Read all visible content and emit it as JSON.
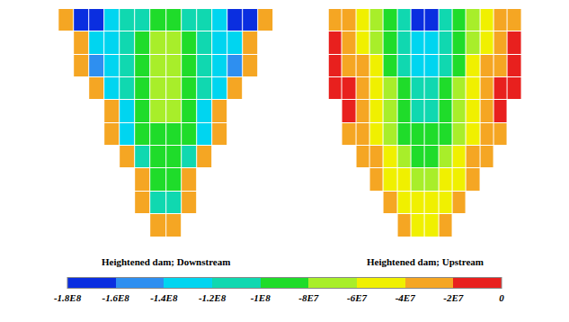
{
  "chart_data": {
    "type": "heatmap",
    "tick_labels": false,
    "colors": [
      "#0a2ee0",
      "#2e8ff0",
      "#00d5f0",
      "#10d8b0",
      "#1fdc2a",
      "#a8ee2a",
      "#f0f000",
      "#f5a623",
      "#e8201e"
    ],
    "colorbar": {
      "range": [
        -180000000.0,
        0
      ],
      "ticks": [
        {
          "value": -180000000.0,
          "label": "-1.8E8"
        },
        {
          "value": -160000000.0,
          "label": "-1.6E8"
        },
        {
          "value": -140000000.0,
          "label": "-1.4E8"
        },
        {
          "value": -120000000.0,
          "label": "-1.2E8"
        },
        {
          "value": -100000000.0,
          "label": "-1E8"
        },
        {
          "value": -80000000.0,
          "label": "-8E7"
        },
        {
          "value": -60000000.0,
          "label": "-6E7"
        },
        {
          "value": -40000000.0,
          "label": "-4E7"
        },
        {
          "value": -20000000.0,
          "label": "-2E7"
        },
        0
      ]
    },
    "panels": [
      {
        "title": "Heightened dam; Downstream",
        "z": [
          [
            -30000000.0,
            -170000000.0,
            -170000000.0,
            -130000000.0,
            -110000000.0,
            -110000000.0,
            -90000000.0,
            -90000000.0,
            -110000000.0,
            -110000000.0,
            -130000000.0,
            -170000000.0,
            -170000000.0,
            -30000000.0
          ],
          [
            null,
            -30000000.0,
            -130000000.0,
            -130000000.0,
            -110000000.0,
            -90000000.0,
            -70000000.0,
            -70000000.0,
            -90000000.0,
            -110000000.0,
            -130000000.0,
            -130000000.0,
            -30000000.0,
            null
          ],
          [
            null,
            -30000000.0,
            -150000000.0,
            -130000000.0,
            -110000000.0,
            -90000000.0,
            -70000000.0,
            -70000000.0,
            -90000000.0,
            -110000000.0,
            -130000000.0,
            -150000000.0,
            -30000000.0,
            null
          ],
          [
            null,
            null,
            -30000000.0,
            -130000000.0,
            -110000000.0,
            -90000000.0,
            -70000000.0,
            -70000000.0,
            -90000000.0,
            -110000000.0,
            -130000000.0,
            -30000000.0,
            null,
            null
          ],
          [
            null,
            null,
            null,
            -30000000.0,
            -130000000.0,
            -90000000.0,
            -70000000.0,
            -70000000.0,
            -90000000.0,
            -130000000.0,
            -30000000.0,
            null,
            null,
            null
          ],
          [
            null,
            null,
            null,
            -30000000.0,
            -130000000.0,
            -90000000.0,
            -90000000.0,
            -90000000.0,
            -90000000.0,
            -130000000.0,
            -30000000.0,
            null,
            null,
            null
          ],
          [
            null,
            null,
            null,
            null,
            -30000000.0,
            -110000000.0,
            -90000000.0,
            -90000000.0,
            -110000000.0,
            -30000000.0,
            null,
            null,
            null,
            null
          ],
          [
            null,
            null,
            null,
            null,
            null,
            -30000000.0,
            -90000000.0,
            -90000000.0,
            -30000000.0,
            null,
            null,
            null,
            null,
            null
          ],
          [
            null,
            null,
            null,
            null,
            null,
            -30000000.0,
            -110000000.0,
            -110000000.0,
            -30000000.0,
            null,
            null,
            null,
            null,
            null
          ],
          [
            null,
            null,
            null,
            null,
            null,
            null,
            -30000000.0,
            -30000000.0,
            null,
            null,
            null,
            null,
            null,
            null
          ]
        ]
      },
      {
        "title": "Heightened dam; Upstream",
        "z": [
          [
            -30000000.0,
            -30000000.0,
            -50000000.0,
            -70000000.0,
            -90000000.0,
            -110000000.0,
            -170000000.0,
            -170000000.0,
            -110000000.0,
            -90000000.0,
            -70000000.0,
            -50000000.0,
            -30000000.0,
            -30000000.0
          ],
          [
            -10000000.0,
            -30000000.0,
            -50000000.0,
            -70000000.0,
            -90000000.0,
            -110000000.0,
            -130000000.0,
            -130000000.0,
            -110000000.0,
            -90000000.0,
            -70000000.0,
            -50000000.0,
            -30000000.0,
            -10000000.0
          ],
          [
            -10000000.0,
            -30000000.0,
            -30000000.0,
            -50000000.0,
            -90000000.0,
            -110000000.0,
            -130000000.0,
            -130000000.0,
            -110000000.0,
            -90000000.0,
            -50000000.0,
            -30000000.0,
            -30000000.0,
            -10000000.0
          ],
          [
            -10000000.0,
            -10000000.0,
            -30000000.0,
            -50000000.0,
            -70000000.0,
            -90000000.0,
            -110000000.0,
            -110000000.0,
            -90000000.0,
            -70000000.0,
            -50000000.0,
            -30000000.0,
            -10000000.0,
            -10000000.0
          ],
          [
            null,
            -10000000.0,
            -30000000.0,
            -50000000.0,
            -70000000.0,
            -90000000.0,
            -110000000.0,
            -110000000.0,
            -90000000.0,
            -70000000.0,
            -50000000.0,
            -30000000.0,
            -10000000.0,
            null
          ],
          [
            null,
            -30000000.0,
            -30000000.0,
            -50000000.0,
            -70000000.0,
            -90000000.0,
            -90000000.0,
            -90000000.0,
            -90000000.0,
            -70000000.0,
            -50000000.0,
            -30000000.0,
            -30000000.0,
            null
          ],
          [
            null,
            null,
            -30000000.0,
            -30000000.0,
            -50000000.0,
            -70000000.0,
            -90000000.0,
            -90000000.0,
            -70000000.0,
            -50000000.0,
            -30000000.0,
            -30000000.0,
            null,
            null
          ],
          [
            null,
            null,
            null,
            -30000000.0,
            -50000000.0,
            -50000000.0,
            -70000000.0,
            -70000000.0,
            -50000000.0,
            -50000000.0,
            -30000000.0,
            null,
            null,
            null
          ],
          [
            null,
            null,
            null,
            null,
            -30000000.0,
            -50000000.0,
            -50000000.0,
            -50000000.0,
            -50000000.0,
            -30000000.0,
            null,
            null,
            null,
            null
          ],
          [
            null,
            null,
            null,
            null,
            null,
            -30000000.0,
            -50000000.0,
            -50000000.0,
            -30000000.0,
            null,
            null,
            null,
            null,
            null
          ]
        ]
      }
    ]
  }
}
